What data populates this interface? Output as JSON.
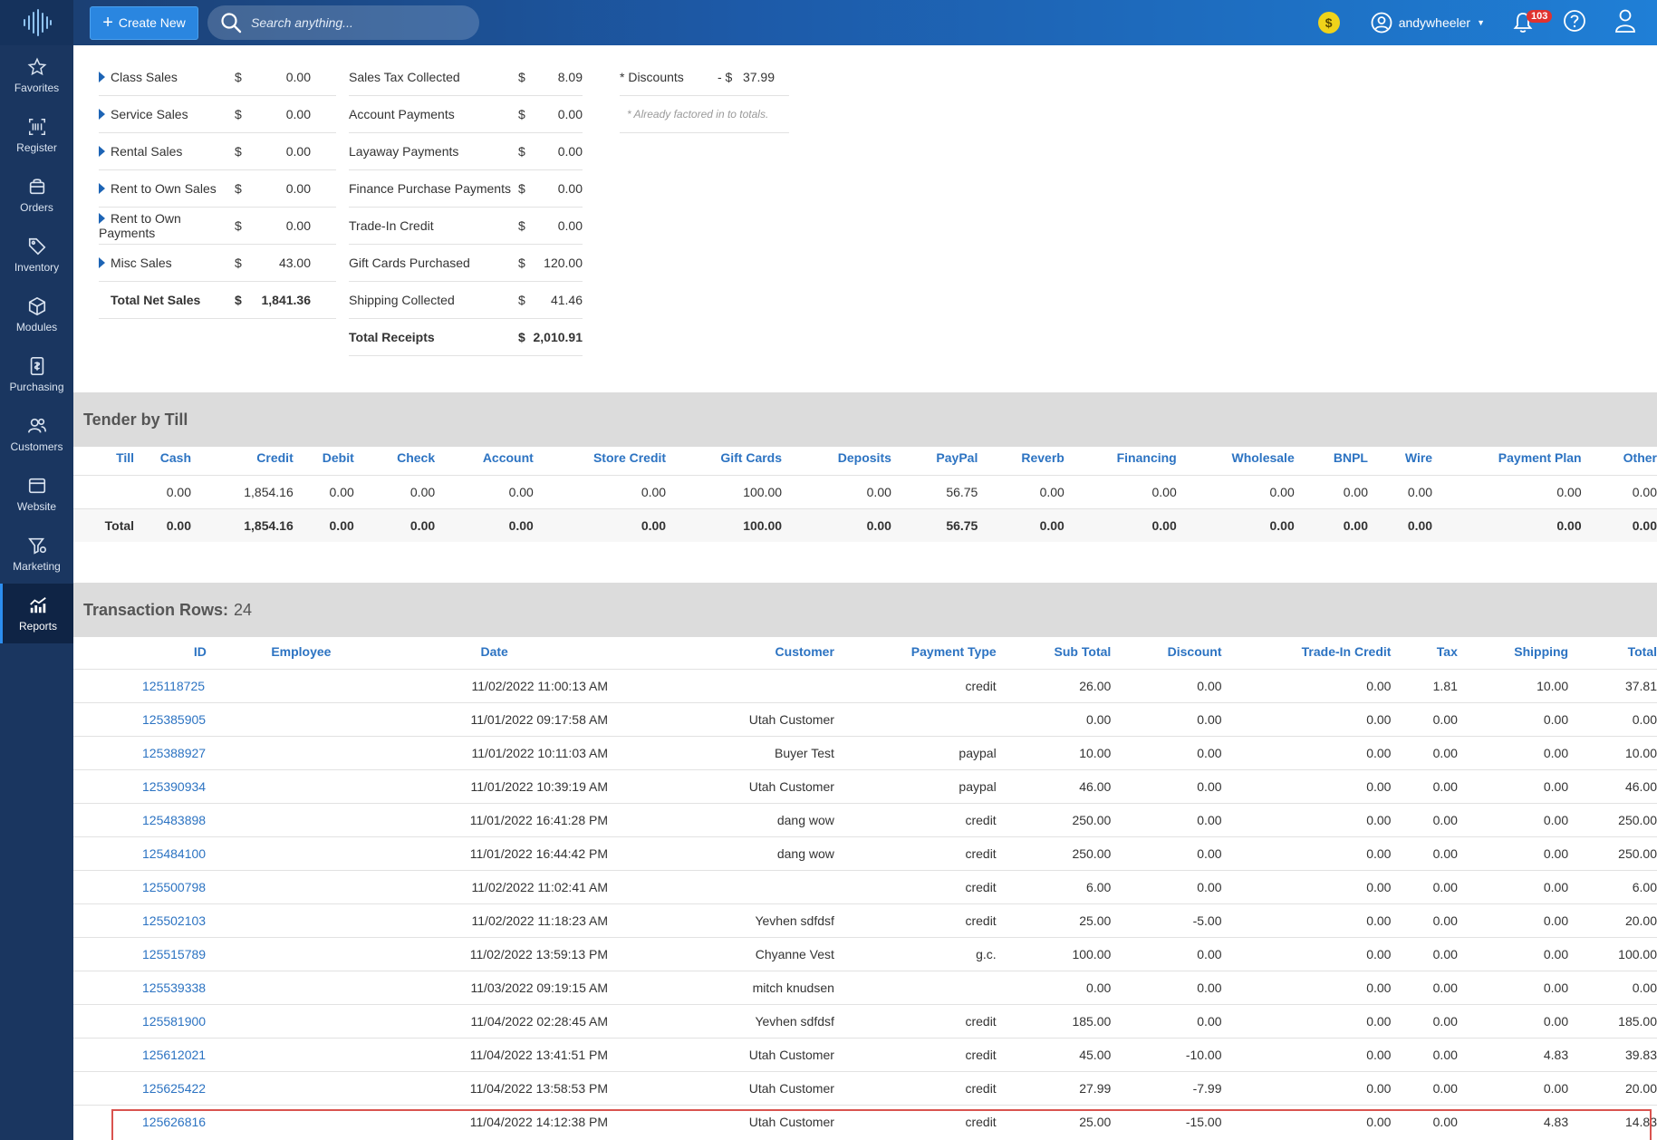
{
  "topbar": {
    "create_label": "Create New",
    "search_placeholder": "Search anything...",
    "coin_symbol": "$",
    "username": "andywheeler",
    "notification_count": "103"
  },
  "sidebar": {
    "items": [
      {
        "label": "Favorites",
        "icon": "star-icon"
      },
      {
        "label": "Register",
        "icon": "barcode-icon"
      },
      {
        "label": "Orders",
        "icon": "bag-icon"
      },
      {
        "label": "Inventory",
        "icon": "tag-icon"
      },
      {
        "label": "Modules",
        "icon": "cube-icon"
      },
      {
        "label": "Purchasing",
        "icon": "document-icon"
      },
      {
        "label": "Customers",
        "icon": "people-icon"
      },
      {
        "label": "Website",
        "icon": "browser-icon"
      },
      {
        "label": "Marketing",
        "icon": "funnel-icon"
      },
      {
        "label": "Reports",
        "icon": "chart-icon"
      }
    ],
    "active": "Reports"
  },
  "sales_summary": {
    "col1": [
      {
        "label": "Class Sales",
        "dollar": "$",
        "amount": "0.00"
      },
      {
        "label": "Service Sales",
        "dollar": "$",
        "amount": "0.00"
      },
      {
        "label": "Rental Sales",
        "dollar": "$",
        "amount": "0.00"
      },
      {
        "label": "Rent to Own Sales",
        "dollar": "$",
        "amount": "0.00"
      },
      {
        "label": "Rent to Own Payments",
        "dollar": "$",
        "amount": "0.00"
      },
      {
        "label": "Misc Sales",
        "dollar": "$",
        "amount": "43.00"
      },
      {
        "label": "Total Net Sales",
        "dollar": "$",
        "amount": "1,841.36"
      }
    ],
    "col2": [
      {
        "label": "Sales Tax Collected",
        "dollar": "$",
        "amount": "8.09"
      },
      {
        "label": "Account Payments",
        "dollar": "$",
        "amount": "0.00"
      },
      {
        "label": "Layaway Payments",
        "dollar": "$",
        "amount": "0.00"
      },
      {
        "label": "Finance Purchase Payments",
        "dollar": "$",
        "amount": "0.00"
      },
      {
        "label": "Trade-In Credit",
        "dollar": "$",
        "amount": "0.00"
      },
      {
        "label": "Gift Cards Purchased",
        "dollar": "$",
        "amount": "120.00"
      },
      {
        "label": "Shipping Collected",
        "dollar": "$",
        "amount": "41.46"
      },
      {
        "label": "Total Receipts",
        "dollar": "$",
        "amount": "2,010.91"
      }
    ],
    "col3": {
      "label": "* Discounts",
      "dollar": "- $",
      "amount": "37.99",
      "note": "* Already factored in to totals."
    }
  },
  "tender": {
    "title": "Tender by Till",
    "headers": [
      "Till",
      "Cash",
      "Credit",
      "Debit",
      "Check",
      "Account",
      "Store Credit",
      "Gift Cards",
      "Deposits",
      "PayPal",
      "Reverb",
      "Financing",
      "Wholesale",
      "BNPL",
      "Wire",
      "Payment Plan",
      "Other"
    ],
    "rows": [
      [
        "",
        "0.00",
        "1,854.16",
        "0.00",
        "0.00",
        "0.00",
        "0.00",
        "100.00",
        "0.00",
        "56.75",
        "0.00",
        "0.00",
        "0.00",
        "0.00",
        "0.00",
        "0.00",
        "0.00"
      ]
    ],
    "total": [
      "Total",
      "0.00",
      "1,854.16",
      "0.00",
      "0.00",
      "0.00",
      "0.00",
      "100.00",
      "0.00",
      "56.75",
      "0.00",
      "0.00",
      "0.00",
      "0.00",
      "0.00",
      "0.00",
      "0.00"
    ]
  },
  "transactions": {
    "title": "Transaction Rows:",
    "count": "24",
    "headers": [
      "ID",
      "Employee",
      "Date",
      "Customer",
      "Payment Type",
      "Sub Total",
      "Discount",
      "Trade-In Credit",
      "Tax",
      "Shipping",
      "Total"
    ],
    "rows": [
      [
        "125118725",
        "",
        "11/02/2022 11:00:13 AM",
        "",
        "credit",
        "26.00",
        "0.00",
        "0.00",
        "1.81",
        "10.00",
        "37.81"
      ],
      [
        "125385905",
        "",
        "11/01/2022 09:17:58 AM",
        "Utah Customer",
        "",
        "0.00",
        "0.00",
        "0.00",
        "0.00",
        "0.00",
        "0.00"
      ],
      [
        "125388927",
        "",
        "11/01/2022 10:11:03 AM",
        "Buyer Test",
        "paypal",
        "10.00",
        "0.00",
        "0.00",
        "0.00",
        "0.00",
        "10.00"
      ],
      [
        "125390934",
        "",
        "11/01/2022 10:39:19 AM",
        "Utah Customer",
        "paypal",
        "46.00",
        "0.00",
        "0.00",
        "0.00",
        "0.00",
        "46.00"
      ],
      [
        "125483898",
        "",
        "11/01/2022 16:41:28 PM",
        "dang wow",
        "credit",
        "250.00",
        "0.00",
        "0.00",
        "0.00",
        "0.00",
        "250.00"
      ],
      [
        "125484100",
        "",
        "11/01/2022 16:44:42 PM",
        "dang wow",
        "credit",
        "250.00",
        "0.00",
        "0.00",
        "0.00",
        "0.00",
        "250.00"
      ],
      [
        "125500798",
        "",
        "11/02/2022 11:02:41 AM",
        "",
        "credit",
        "6.00",
        "0.00",
        "0.00",
        "0.00",
        "0.00",
        "6.00"
      ],
      [
        "125502103",
        "",
        "11/02/2022 11:18:23 AM",
        "Yevhen sdfdsf",
        "credit",
        "25.00",
        "-5.00",
        "0.00",
        "0.00",
        "0.00",
        "20.00"
      ],
      [
        "125515789",
        "",
        "11/02/2022 13:59:13 PM",
        "Chyanne Vest",
        "g.c.",
        "100.00",
        "0.00",
        "0.00",
        "0.00",
        "0.00",
        "100.00"
      ],
      [
        "125539338",
        "",
        "11/03/2022 09:19:15 AM",
        "mitch knudsen",
        "",
        "0.00",
        "0.00",
        "0.00",
        "0.00",
        "0.00",
        "0.00"
      ],
      [
        "125581900",
        "",
        "11/04/2022 02:28:45 AM",
        "Yevhen sdfdsf",
        "credit",
        "185.00",
        "0.00",
        "0.00",
        "0.00",
        "0.00",
        "185.00"
      ],
      [
        "125612021",
        "",
        "11/04/2022 13:41:51 PM",
        "Utah Customer",
        "credit",
        "45.00",
        "-10.00",
        "0.00",
        "0.00",
        "4.83",
        "39.83"
      ],
      [
        "125625422",
        "",
        "11/04/2022 13:58:53 PM",
        "Utah Customer",
        "credit",
        "27.99",
        "-7.99",
        "0.00",
        "0.00",
        "0.00",
        "20.00"
      ],
      [
        "125626816",
        "",
        "11/04/2022 14:12:38 PM",
        "Utah Customer",
        "credit",
        "25.00",
        "-15.00",
        "0.00",
        "0.00",
        "4.83",
        "14.83"
      ]
    ],
    "highlighted_row": 13
  },
  "colors": {
    "sidebar_bg": "#1a3660",
    "accent": "#2c73c2",
    "highlight_border": "#d9534f"
  }
}
